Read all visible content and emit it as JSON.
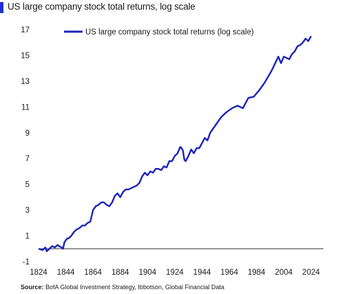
{
  "header": {
    "subtitle": "US large company stock total returns, log scale"
  },
  "footer": {
    "source_label": "Source:",
    "source_text": "BofA Global Investment Strategy, Ibbotson, Global Financial Data"
  },
  "colors": {
    "line": "#1a22b8",
    "accent": "#1f2fd1",
    "axis": "#333333"
  },
  "chart_data": {
    "type": "line",
    "title": "",
    "xlabel": "",
    "ylabel": "",
    "xlim": [
      1824,
      2024
    ],
    "ylim": [
      -1,
      17
    ],
    "x_ticks": [
      1824,
      1844,
      1864,
      1884,
      1904,
      1924,
      1944,
      1964,
      1984,
      2004,
      2024
    ],
    "y_ticks": [
      -1,
      1,
      3,
      5,
      7,
      9,
      11,
      13,
      15,
      17
    ],
    "grid": false,
    "legend": "top",
    "baseline": 0,
    "series": [
      {
        "name": "US large company stock total returns (log scale)",
        "x": [
          1824,
          1827,
          1829,
          1830,
          1832,
          1834,
          1836,
          1838,
          1839,
          1841,
          1842,
          1843,
          1845,
          1846,
          1848,
          1850,
          1852,
          1854,
          1856,
          1858,
          1860,
          1862,
          1864,
          1866,
          1868,
          1870,
          1872,
          1874,
          1876,
          1878,
          1880,
          1882,
          1884,
          1886,
          1888,
          1890,
          1892,
          1894,
          1896,
          1898,
          1900,
          1902,
          1904,
          1906,
          1908,
          1910,
          1912,
          1914,
          1916,
          1918,
          1920,
          1922,
          1924,
          1926,
          1928,
          1929,
          1930,
          1931,
          1932,
          1934,
          1936,
          1938,
          1940,
          1942,
          1944,
          1946,
          1948,
          1950,
          1954,
          1958,
          1962,
          1966,
          1970,
          1974,
          1978,
          1982,
          1986,
          1990,
          1995,
          2000,
          2002,
          2004,
          2006,
          2008,
          2010,
          2012,
          2014,
          2016,
          2018,
          2020,
          2022,
          2024
        ],
        "values": [
          0.0,
          -0.1,
          0.1,
          -0.2,
          0.0,
          0.2,
          0.1,
          0.3,
          0.2,
          0.1,
          0.0,
          0.5,
          0.8,
          0.8,
          1.0,
          1.3,
          1.5,
          1.6,
          1.8,
          1.8,
          2.0,
          2.1,
          3.0,
          3.3,
          3.4,
          3.6,
          3.6,
          3.4,
          3.3,
          3.6,
          4.1,
          4.3,
          4.0,
          4.4,
          4.6,
          4.6,
          4.7,
          4.8,
          4.9,
          5.1,
          5.6,
          5.9,
          5.7,
          6.0,
          5.9,
          6.2,
          6.2,
          6.1,
          6.4,
          6.3,
          6.8,
          6.8,
          7.2,
          7.4,
          7.9,
          7.8,
          7.6,
          6.9,
          6.8,
          7.2,
          7.7,
          7.4,
          7.8,
          7.8,
          8.2,
          8.6,
          8.4,
          9.0,
          9.6,
          10.2,
          10.6,
          10.9,
          11.1,
          10.9,
          11.7,
          11.8,
          12.3,
          12.9,
          13.8,
          14.9,
          14.4,
          14.9,
          14.8,
          14.7,
          15.1,
          15.3,
          15.7,
          15.8,
          16.0,
          16.3,
          16.1,
          16.5
        ]
      }
    ]
  }
}
